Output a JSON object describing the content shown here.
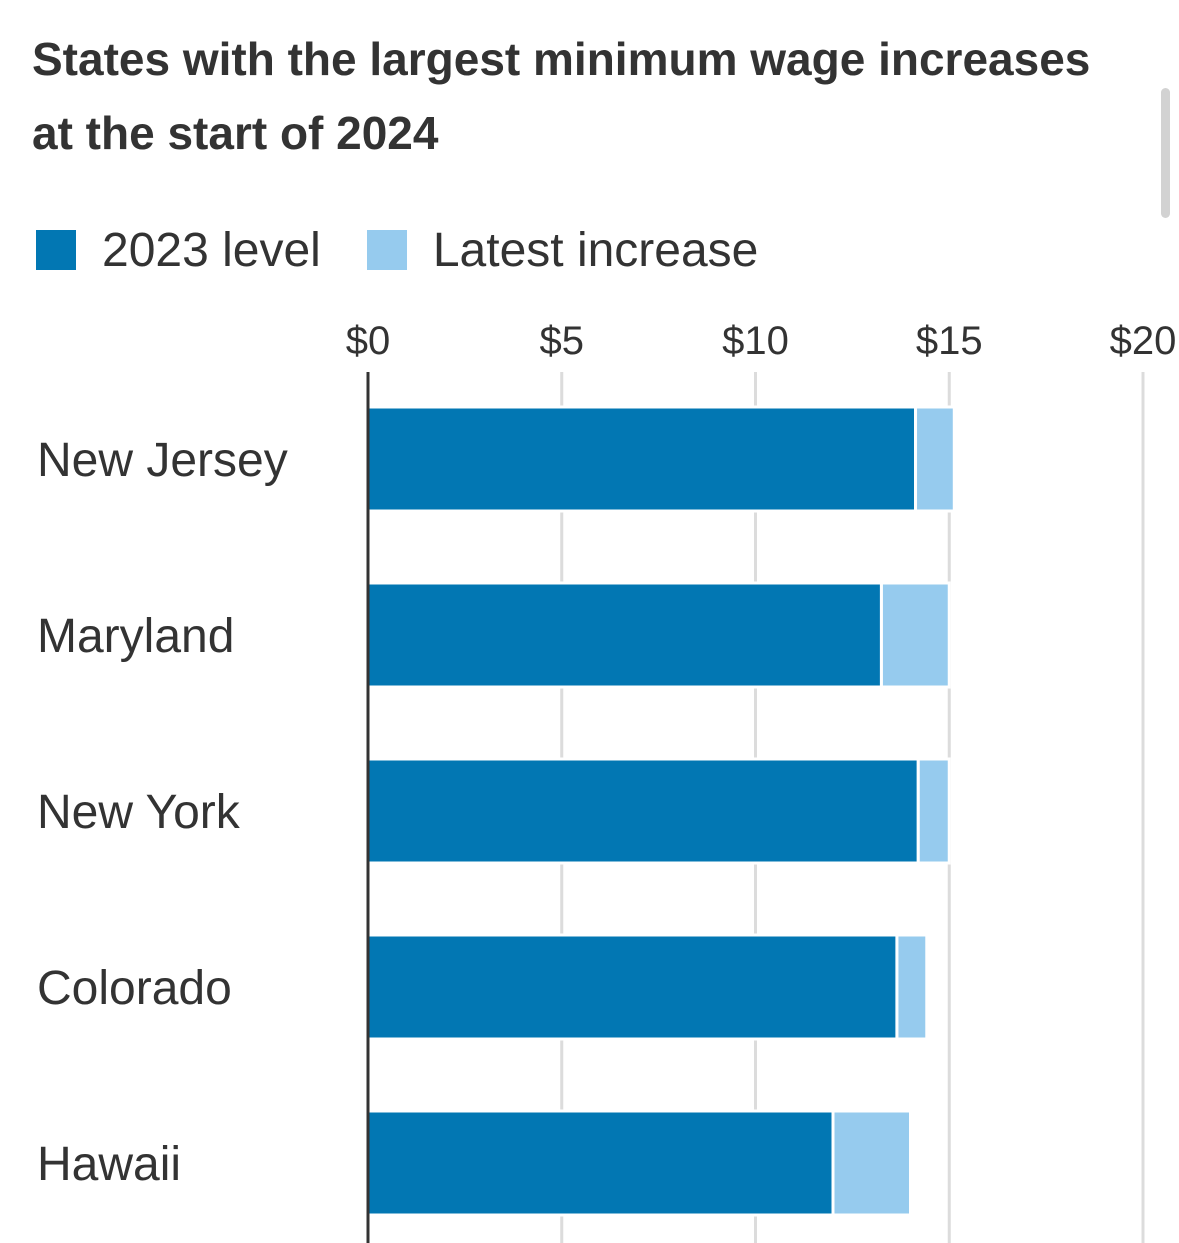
{
  "chart_data": {
    "type": "bar",
    "orientation": "horizontal",
    "stacked": true,
    "title": "States with the largest minimum wage increases at the start of 2024",
    "categories": [
      "New Jersey",
      "Maryland",
      "New York",
      "Colorado",
      "Hawaii"
    ],
    "series": [
      {
        "name": "2023 level",
        "color": "#0277b3",
        "values": [
          14.13,
          13.25,
          14.2,
          13.65,
          12.0
        ]
      },
      {
        "name": "Latest increase",
        "color": "#96cbee",
        "values": [
          1.0,
          1.75,
          0.8,
          0.77,
          2.0
        ]
      }
    ],
    "x_ticks": [
      0,
      5,
      10,
      15,
      20
    ],
    "x_tick_labels": [
      "$0",
      "$5",
      "$10",
      "$15",
      "$20"
    ],
    "xlim": [
      0,
      20
    ],
    "xlabel": "",
    "ylabel": "",
    "grid": true,
    "legend_position": "top-left"
  }
}
